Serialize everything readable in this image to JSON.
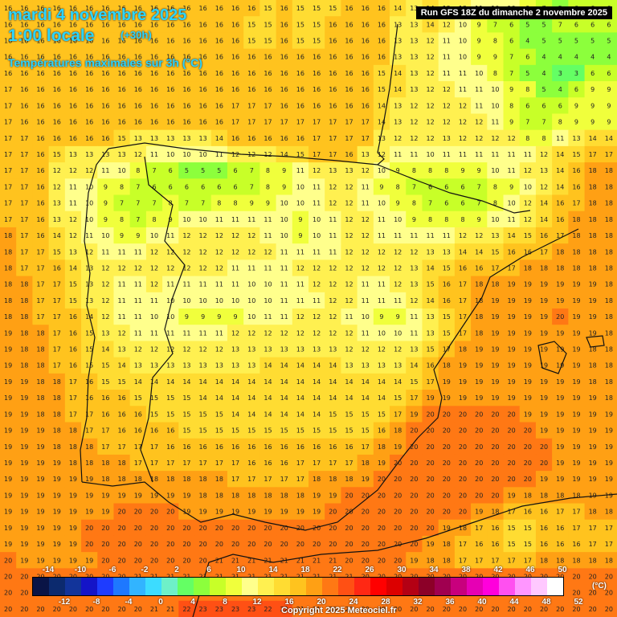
{
  "header": {
    "date": "mardi 4 novembre 2025",
    "hour": "1:00 locale",
    "lead": "(+30h)",
    "variable": "Températures maximales sur 3h (°C)",
    "run": "Run GFS 18Z du dimanche 2 novembre 2025"
  },
  "footer": {
    "copyright": "Copyright 2025 Meteociel.fr"
  },
  "legend": {
    "unit": "(°C)",
    "top_labels": [
      "-14",
      "-10",
      "-6",
      "-2",
      "2",
      "6",
      "10",
      "14",
      "18",
      "22",
      "26",
      "30",
      "34",
      "38",
      "42",
      "46",
      "50"
    ],
    "bottom_labels": [
      "-12",
      "-8",
      "-4",
      "0",
      "4",
      "8",
      "12",
      "16",
      "20",
      "24",
      "28",
      "32",
      "36",
      "40",
      "44",
      "48",
      "52"
    ],
    "colors": [
      "#0a1446",
      "#0c2a6e",
      "#12349a",
      "#1414c8",
      "#1e3cff",
      "#1e78ff",
      "#32b4ff",
      "#3cdcff",
      "#6ef0c8",
      "#64ff64",
      "#8cff3c",
      "#c8ff28",
      "#f0ff3c",
      "#ffff8c",
      "#fff050",
      "#ffdc32",
      "#ffc31e",
      "#ffa014",
      "#ff7814",
      "#ff5014",
      "#ff2814",
      "#ff0000",
      "#dc0000",
      "#b40014",
      "#8c0028",
      "#a00050",
      "#c8007d",
      "#e600b4",
      "#ff00dc",
      "#ff50f0",
      "#ff96ff",
      "#ffc8ff",
      "#ffffff"
    ]
  },
  "grid": {
    "rows": [
      [
        16,
        16,
        16,
        16,
        16,
        16,
        16,
        16,
        16,
        16,
        16,
        16,
        16,
        16,
        16,
        16,
        15,
        16,
        15,
        15,
        15,
        16,
        16,
        16,
        14,
        13,
        14,
        12,
        12,
        11,
        10,
        10,
        9,
        7,
        5,
        6,
        6,
        6
      ],
      [
        16,
        16,
        16,
        16,
        16,
        16,
        16,
        16,
        16,
        16,
        16,
        16,
        16,
        16,
        16,
        15,
        15,
        16,
        15,
        15,
        16,
        16,
        16,
        16,
        13,
        13,
        14,
        12,
        10,
        9,
        7,
        6,
        5,
        5,
        7,
        6,
        6,
        6
      ],
      [
        16,
        16,
        16,
        16,
        16,
        16,
        16,
        16,
        16,
        16,
        16,
        16,
        16,
        16,
        16,
        15,
        15,
        16,
        15,
        15,
        16,
        16,
        16,
        16,
        13,
        13,
        12,
        11,
        10,
        9,
        8,
        6,
        4,
        5,
        5,
        5,
        5,
        5
      ],
      [
        16,
        16,
        16,
        16,
        16,
        16,
        16,
        16,
        16,
        16,
        16,
        16,
        16,
        16,
        16,
        16,
        16,
        16,
        16,
        16,
        16,
        16,
        16,
        16,
        13,
        13,
        12,
        11,
        10,
        9,
        9,
        7,
        6,
        4,
        4,
        4,
        4,
        4
      ],
      [
        16,
        16,
        16,
        16,
        16,
        16,
        16,
        16,
        16,
        16,
        16,
        16,
        16,
        16,
        16,
        16,
        16,
        16,
        16,
        16,
        16,
        16,
        16,
        15,
        14,
        13,
        12,
        11,
        11,
        10,
        8,
        7,
        5,
        4,
        3,
        3,
        6,
        6
      ],
      [
        17,
        16,
        16,
        16,
        16,
        16,
        16,
        16,
        16,
        16,
        16,
        16,
        16,
        16,
        16,
        16,
        16,
        16,
        16,
        16,
        16,
        16,
        16,
        15,
        14,
        13,
        12,
        12,
        11,
        11,
        10,
        9,
        8,
        5,
        4,
        6,
        9,
        9
      ],
      [
        17,
        16,
        16,
        16,
        16,
        16,
        16,
        16,
        16,
        16,
        16,
        16,
        16,
        16,
        17,
        17,
        17,
        16,
        16,
        16,
        16,
        16,
        16,
        14,
        13,
        12,
        12,
        12,
        12,
        11,
        10,
        8,
        6,
        6,
        6,
        9,
        9,
        9
      ],
      [
        17,
        16,
        16,
        16,
        16,
        16,
        16,
        16,
        16,
        16,
        16,
        16,
        16,
        16,
        17,
        17,
        17,
        17,
        17,
        17,
        17,
        17,
        17,
        14,
        13,
        12,
        12,
        12,
        12,
        12,
        11,
        9,
        7,
        7,
        8,
        9,
        9,
        9
      ],
      [
        17,
        17,
        16,
        16,
        16,
        16,
        16,
        15,
        13,
        13,
        13,
        13,
        13,
        14,
        16,
        16,
        16,
        16,
        16,
        17,
        17,
        17,
        17,
        13,
        12,
        12,
        12,
        13,
        12,
        12,
        12,
        12,
        8,
        8,
        11,
        13,
        14,
        14
      ],
      [
        17,
        17,
        16,
        15,
        13,
        13,
        13,
        13,
        12,
        11,
        10,
        10,
        10,
        11,
        12,
        12,
        12,
        14,
        15,
        17,
        17,
        16,
        13,
        12,
        11,
        11,
        10,
        11,
        11,
        11,
        11,
        11,
        11,
        12,
        14,
        15,
        17,
        17
      ],
      [
        17,
        17,
        16,
        12,
        12,
        12,
        11,
        10,
        8,
        7,
        6,
        5,
        5,
        5,
        6,
        7,
        8,
        9,
        11,
        12,
        13,
        13,
        12,
        10,
        9,
        8,
        8,
        8,
        9,
        9,
        10,
        11,
        12,
        13,
        14,
        16,
        18,
        18
      ],
      [
        17,
        17,
        16,
        12,
        11,
        10,
        9,
        8,
        7,
        6,
        6,
        6,
        6,
        6,
        6,
        7,
        8,
        9,
        10,
        11,
        12,
        12,
        11,
        9,
        8,
        7,
        6,
        6,
        6,
        7,
        8,
        9,
        10,
        12,
        14,
        16,
        18,
        18
      ],
      [
        17,
        17,
        16,
        13,
        11,
        10,
        9,
        7,
        7,
        7,
        8,
        7,
        7,
        8,
        8,
        9,
        9,
        10,
        10,
        11,
        12,
        12,
        11,
        10,
        9,
        8,
        7,
        6,
        6,
        7,
        8,
        10,
        12,
        14,
        16,
        17,
        18,
        18
      ],
      [
        17,
        17,
        16,
        13,
        12,
        10,
        9,
        8,
        7,
        8,
        9,
        10,
        10,
        11,
        11,
        11,
        11,
        10,
        9,
        10,
        11,
        12,
        12,
        11,
        10,
        9,
        8,
        8,
        8,
        9,
        10,
        11,
        12,
        14,
        16,
        18,
        18,
        18
      ],
      [
        18,
        17,
        16,
        14,
        12,
        11,
        10,
        9,
        9,
        10,
        11,
        12,
        12,
        12,
        12,
        12,
        11,
        10,
        9,
        10,
        11,
        12,
        12,
        11,
        11,
        11,
        11,
        11,
        12,
        12,
        13,
        14,
        15,
        16,
        17,
        18,
        18,
        18
      ],
      [
        18,
        17,
        17,
        15,
        13,
        12,
        11,
        11,
        11,
        12,
        12,
        12,
        12,
        12,
        12,
        12,
        12,
        11,
        11,
        11,
        11,
        12,
        12,
        12,
        12,
        12,
        13,
        13,
        14,
        14,
        15,
        16,
        16,
        17,
        18,
        18,
        18,
        18
      ],
      [
        18,
        17,
        17,
        16,
        14,
        13,
        12,
        12,
        12,
        12,
        12,
        12,
        12,
        12,
        11,
        11,
        11,
        11,
        12,
        12,
        12,
        12,
        12,
        12,
        12,
        13,
        14,
        15,
        16,
        16,
        17,
        17,
        18,
        18,
        18,
        18,
        18,
        18
      ],
      [
        18,
        18,
        17,
        17,
        15,
        13,
        12,
        11,
        11,
        12,
        11,
        11,
        11,
        11,
        11,
        10,
        10,
        11,
        11,
        12,
        12,
        12,
        11,
        11,
        12,
        13,
        15,
        16,
        17,
        18,
        18,
        19,
        19,
        19,
        19,
        19,
        19,
        18
      ],
      [
        18,
        18,
        17,
        17,
        15,
        13,
        12,
        11,
        11,
        11,
        10,
        10,
        10,
        10,
        10,
        10,
        10,
        11,
        11,
        11,
        12,
        12,
        11,
        11,
        11,
        12,
        14,
        16,
        17,
        18,
        19,
        19,
        19,
        19,
        19,
        19,
        19,
        18
      ],
      [
        18,
        18,
        17,
        17,
        16,
        14,
        12,
        11,
        11,
        10,
        10,
        9,
        9,
        9,
        9,
        10,
        11,
        11,
        12,
        12,
        12,
        11,
        10,
        9,
        9,
        11,
        13,
        15,
        17,
        18,
        19,
        19,
        19,
        19,
        20,
        19,
        19,
        18
      ],
      [
        19,
        18,
        18,
        17,
        16,
        15,
        13,
        12,
        11,
        11,
        11,
        11,
        11,
        11,
        12,
        12,
        12,
        12,
        12,
        12,
        12,
        12,
        11,
        10,
        10,
        11,
        13,
        15,
        17,
        18,
        19,
        19,
        19,
        19,
        19,
        19,
        19,
        18
      ],
      [
        19,
        18,
        18,
        17,
        16,
        15,
        14,
        13,
        12,
        12,
        12,
        12,
        12,
        12,
        13,
        13,
        13,
        13,
        13,
        13,
        13,
        12,
        12,
        12,
        12,
        13,
        15,
        17,
        18,
        19,
        19,
        19,
        19,
        19,
        19,
        19,
        18,
        18
      ],
      [
        19,
        18,
        18,
        17,
        16,
        15,
        15,
        14,
        13,
        13,
        13,
        13,
        13,
        13,
        13,
        13,
        14,
        14,
        14,
        14,
        14,
        13,
        13,
        13,
        13,
        14,
        16,
        18,
        19,
        19,
        19,
        19,
        19,
        19,
        19,
        19,
        18,
        18
      ],
      [
        19,
        19,
        18,
        18,
        17,
        16,
        15,
        15,
        14,
        14,
        14,
        14,
        14,
        14,
        14,
        14,
        14,
        14,
        14,
        14,
        14,
        14,
        14,
        14,
        14,
        15,
        17,
        19,
        19,
        19,
        19,
        19,
        19,
        19,
        19,
        19,
        18,
        18
      ],
      [
        19,
        19,
        18,
        18,
        17,
        16,
        16,
        16,
        15,
        15,
        15,
        15,
        14,
        14,
        14,
        14,
        14,
        14,
        14,
        14,
        14,
        14,
        14,
        14,
        15,
        17,
        19,
        19,
        19,
        19,
        19,
        19,
        19,
        19,
        19,
        19,
        19,
        18
      ],
      [
        19,
        19,
        18,
        18,
        17,
        17,
        16,
        16,
        16,
        15,
        15,
        15,
        15,
        15,
        14,
        14,
        14,
        14,
        14,
        14,
        15,
        15,
        15,
        15,
        17,
        19,
        20,
        20,
        20,
        20,
        20,
        20,
        19,
        19,
        19,
        19,
        19,
        19
      ],
      [
        19,
        19,
        19,
        18,
        18,
        17,
        17,
        16,
        16,
        16,
        16,
        15,
        15,
        15,
        15,
        15,
        15,
        15,
        15,
        15,
        15,
        15,
        15,
        16,
        18,
        20,
        20,
        20,
        20,
        20,
        20,
        20,
        20,
        19,
        19,
        19,
        19,
        19
      ],
      [
        19,
        19,
        19,
        18,
        18,
        18,
        17,
        17,
        17,
        17,
        16,
        16,
        16,
        16,
        16,
        16,
        16,
        16,
        16,
        16,
        16,
        16,
        17,
        18,
        19,
        20,
        20,
        20,
        20,
        20,
        20,
        20,
        20,
        20,
        19,
        19,
        19,
        19
      ],
      [
        19,
        19,
        19,
        19,
        18,
        18,
        18,
        18,
        17,
        17,
        17,
        17,
        17,
        17,
        17,
        16,
        16,
        16,
        17,
        17,
        17,
        17,
        18,
        19,
        20,
        20,
        20,
        20,
        20,
        20,
        20,
        20,
        20,
        20,
        19,
        19,
        19,
        19
      ],
      [
        19,
        19,
        19,
        19,
        19,
        19,
        18,
        18,
        18,
        18,
        18,
        18,
        18,
        18,
        17,
        17,
        17,
        17,
        17,
        18,
        18,
        18,
        19,
        20,
        20,
        20,
        20,
        20,
        20,
        20,
        20,
        20,
        20,
        19,
        19,
        19,
        19,
        19
      ],
      [
        19,
        19,
        19,
        19,
        19,
        19,
        19,
        19,
        19,
        19,
        19,
        19,
        18,
        18,
        18,
        18,
        18,
        18,
        18,
        19,
        19,
        20,
        20,
        20,
        20,
        20,
        20,
        20,
        20,
        20,
        20,
        19,
        18,
        18,
        18,
        18,
        19,
        19
      ],
      [
        19,
        19,
        19,
        19,
        19,
        19,
        19,
        20,
        20,
        20,
        20,
        19,
        19,
        19,
        19,
        19,
        19,
        19,
        19,
        19,
        20,
        20,
        20,
        20,
        20,
        20,
        20,
        20,
        20,
        19,
        18,
        17,
        16,
        16,
        17,
        17,
        18,
        18
      ],
      [
        19,
        19,
        19,
        19,
        19,
        20,
        20,
        20,
        20,
        20,
        20,
        20,
        20,
        20,
        20,
        20,
        20,
        20,
        20,
        20,
        20,
        20,
        20,
        20,
        20,
        20,
        20,
        19,
        18,
        17,
        16,
        15,
        15,
        16,
        16,
        17,
        17,
        17
      ],
      [
        19,
        19,
        19,
        19,
        19,
        20,
        20,
        20,
        20,
        20,
        20,
        20,
        20,
        20,
        20,
        20,
        20,
        20,
        20,
        20,
        20,
        20,
        20,
        20,
        20,
        20,
        19,
        18,
        17,
        16,
        16,
        15,
        15,
        16,
        16,
        16,
        17,
        17
      ],
      [
        20,
        19,
        19,
        19,
        19,
        19,
        20,
        20,
        20,
        20,
        20,
        20,
        20,
        21,
        21,
        21,
        21,
        21,
        21,
        21,
        21,
        20,
        20,
        20,
        20,
        19,
        18,
        18,
        17,
        17,
        17,
        17,
        17,
        18,
        18,
        18,
        18,
        18
      ],
      [
        20,
        20,
        20,
        20,
        20,
        20,
        20,
        20,
        21,
        21,
        21,
        21,
        21,
        21,
        21,
        21,
        21,
        21,
        21,
        21,
        21,
        21,
        20,
        20,
        20,
        20,
        20,
        20,
        20,
        20,
        20,
        20,
        20,
        20,
        20,
        20,
        20,
        20
      ],
      [
        20,
        20,
        20,
        20,
        20,
        20,
        20,
        20,
        20,
        20,
        20,
        20,
        20,
        20,
        20,
        20,
        20,
        20,
        20,
        20,
        20,
        20,
        20,
        20,
        20,
        20,
        20,
        20,
        20,
        20,
        20,
        20,
        20,
        20,
        20,
        20,
        20,
        20
      ],
      [
        20,
        20,
        20,
        20,
        20,
        20,
        20,
        20,
        20,
        21,
        21,
        22,
        23,
        23,
        23,
        23,
        22,
        22,
        21,
        21,
        20,
        20,
        20,
        20,
        20,
        20,
        20,
        20,
        20,
        20,
        20,
        20,
        20,
        20,
        20,
        20,
        20,
        20
      ]
    ]
  }
}
